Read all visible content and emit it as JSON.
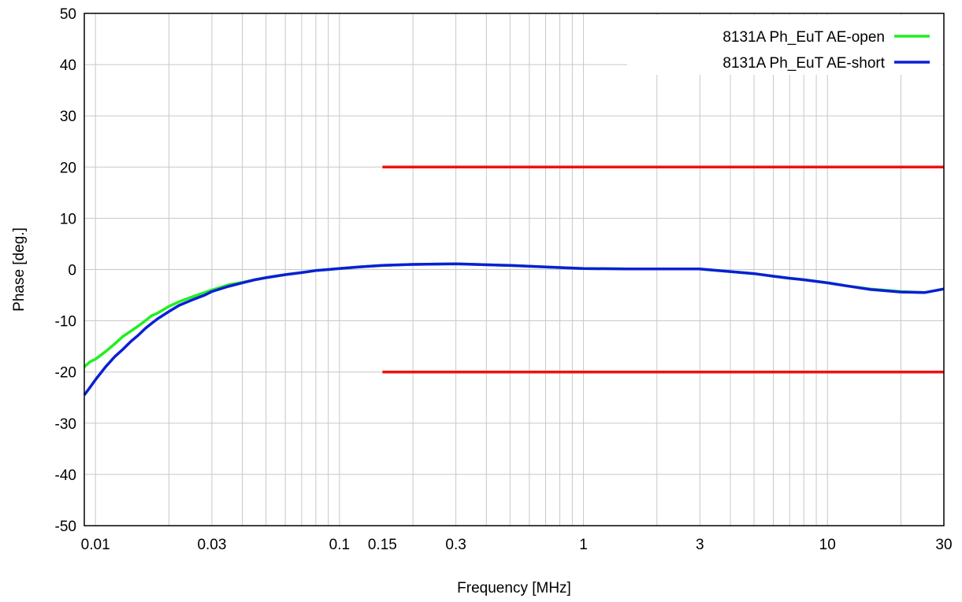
{
  "chart_data": {
    "type": "line",
    "xlabel": "Frequency [MHz]",
    "ylabel": "Phase [deg.]",
    "x_scale": "log",
    "xlim": [
      0.009,
      30
    ],
    "ylim": [
      -50,
      50
    ],
    "x_ticks": [
      0.01,
      0.03,
      0.1,
      0.15,
      0.3,
      1,
      3,
      10,
      30
    ],
    "x_tick_labels": [
      "0.01",
      "0.03",
      "0.1",
      "0.15",
      "0.3",
      "1",
      "3",
      "10",
      "30"
    ],
    "y_ticks": [
      -50,
      -40,
      -30,
      -20,
      -10,
      0,
      10,
      20,
      30,
      40,
      50
    ],
    "y_tick_labels": [
      "-50",
      "-40",
      "-30",
      "-20",
      "-10",
      "0",
      "10",
      "20",
      "30",
      "40",
      "50"
    ],
    "grid": true,
    "legend_position": "top-right",
    "series": [
      {
        "name": "8131A Ph_EuT  AE-open",
        "color": "#22ee22",
        "x": [
          0.009,
          0.0095,
          0.01,
          0.011,
          0.012,
          0.013,
          0.014,
          0.015,
          0.016,
          0.017,
          0.018,
          0.02,
          0.022,
          0.025,
          0.028,
          0.03,
          0.035,
          0.04,
          0.045,
          0.05,
          0.06,
          0.07,
          0.08,
          0.09,
          0.1,
          0.12,
          0.15,
          0.2,
          0.3,
          0.5,
          0.7,
          1,
          1.5,
          2,
          2.5,
          3,
          4,
          5,
          6,
          7,
          8,
          10,
          12,
          15,
          20,
          25,
          30
        ],
        "y": [
          -19,
          -18,
          -17.5,
          -16,
          -14.5,
          -13,
          -12,
          -11,
          -10,
          -9,
          -8.5,
          -7.2,
          -6.3,
          -5.3,
          -4.5,
          -4,
          -3,
          -2.5,
          -2,
          -1.6,
          -1,
          -0.6,
          -0.2,
          0,
          0.2,
          0.5,
          0.8,
          1,
          1.1,
          0.8,
          0.5,
          0.2,
          0.1,
          0.1,
          0.1,
          0.1,
          -0.4,
          -0.8,
          -1.3,
          -1.7,
          -2,
          -2.6,
          -3.2,
          -3.8,
          -4.3,
          -4.5,
          -3.8
        ]
      },
      {
        "name": "8131A Ph_EuT  AE-short",
        "color": "#0b1fd6",
        "x": [
          0.009,
          0.0095,
          0.01,
          0.011,
          0.012,
          0.013,
          0.014,
          0.015,
          0.016,
          0.017,
          0.018,
          0.02,
          0.022,
          0.025,
          0.028,
          0.03,
          0.035,
          0.04,
          0.045,
          0.05,
          0.06,
          0.07,
          0.08,
          0.09,
          0.1,
          0.12,
          0.15,
          0.2,
          0.3,
          0.5,
          0.7,
          1,
          1.5,
          2,
          2.5,
          3,
          4,
          5,
          6,
          7,
          8,
          10,
          12,
          15,
          20,
          25,
          30
        ],
        "y": [
          -24.5,
          -23,
          -21.5,
          -19,
          -17,
          -15.5,
          -14,
          -12.8,
          -11.5,
          -10.5,
          -9.6,
          -8.2,
          -7,
          -5.9,
          -5,
          -4.3,
          -3.3,
          -2.6,
          -2,
          -1.6,
          -1,
          -0.6,
          -0.2,
          0,
          0.2,
          0.5,
          0.8,
          1,
          1.1,
          0.8,
          0.5,
          0.2,
          0.1,
          0.1,
          0.1,
          0.1,
          -0.4,
          -0.8,
          -1.3,
          -1.7,
          -2,
          -2.6,
          -3.2,
          -3.9,
          -4.4,
          -4.5,
          -3.8
        ]
      },
      {
        "name": "",
        "color": "#ee1111",
        "x": [
          0.15,
          30
        ],
        "y": [
          20,
          20
        ]
      },
      {
        "name": "",
        "color": "#ee1111",
        "x": [
          0.15,
          30
        ],
        "y": [
          -20,
          -20
        ]
      }
    ]
  }
}
